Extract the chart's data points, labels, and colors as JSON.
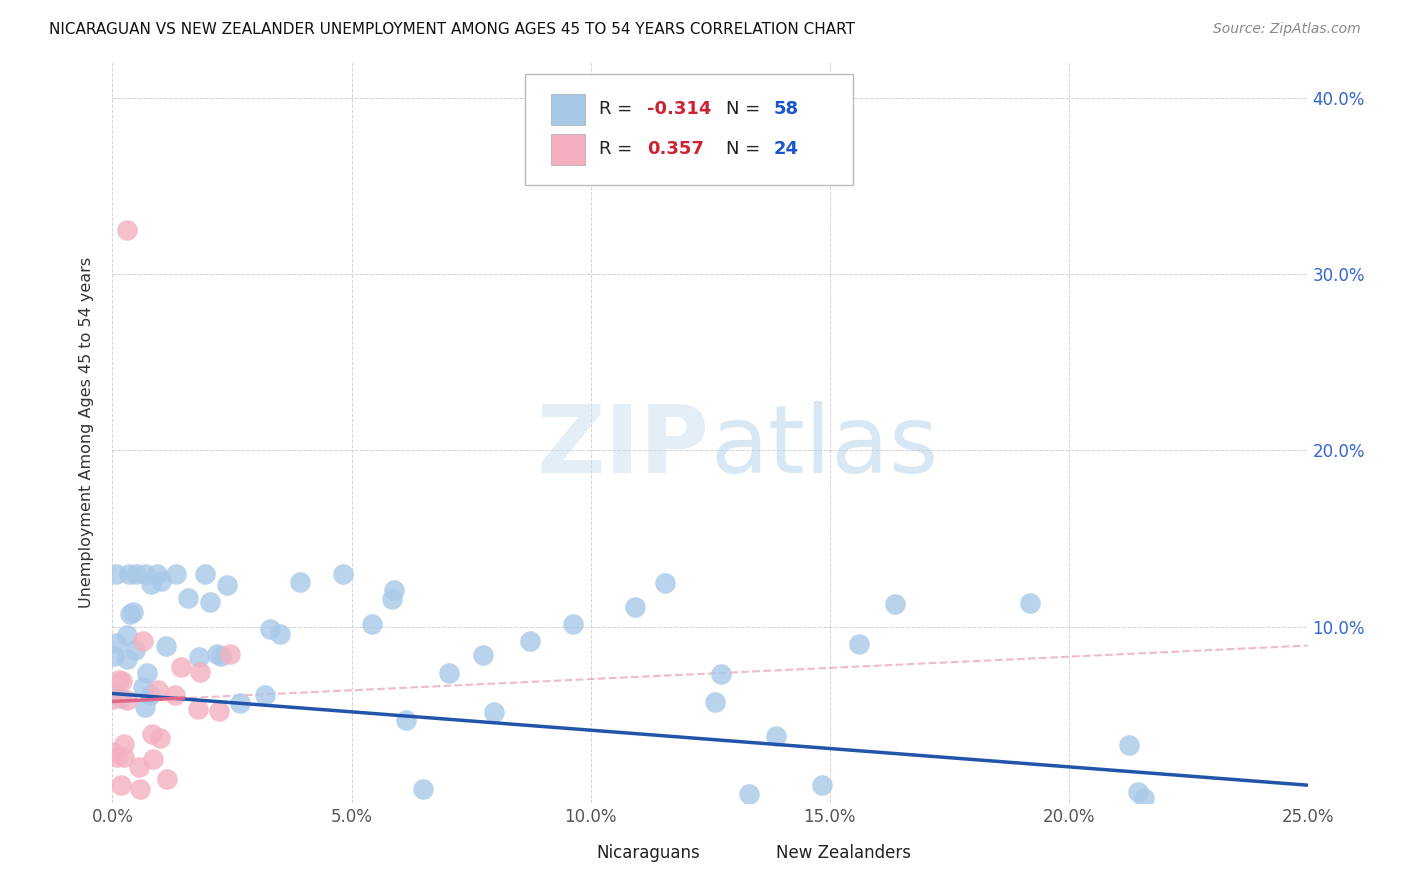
{
  "title": "NICARAGUAN VS NEW ZEALANDER UNEMPLOYMENT AMONG AGES 45 TO 54 YEARS CORRELATION CHART",
  "source": "Source: ZipAtlas.com",
  "ylabel": "Unemployment Among Ages 45 to 54 years",
  "xlim": [
    0.0,
    0.25
  ],
  "ylim": [
    0.0,
    0.42
  ],
  "xticks": [
    0.0,
    0.05,
    0.1,
    0.15,
    0.2,
    0.25
  ],
  "yticks": [
    0.0,
    0.1,
    0.2,
    0.3,
    0.4
  ],
  "xtick_labels": [
    "0.0%",
    "5.0%",
    "10.0%",
    "15.0%",
    "20.0%",
    "25.0%"
  ],
  "ytick_labels": [
    "",
    "10.0%",
    "20.0%",
    "30.0%",
    "40.0%"
  ],
  "r_nicaraguan": -0.314,
  "n_nicaraguan": 58,
  "r_nz": 0.357,
  "n_nz": 24,
  "blue_color": "#a8c8e8",
  "pink_color": "#f4b0c0",
  "trend_blue": "#2255aa",
  "trend_pink": "#dd6688",
  "watermark_zip": "ZIP",
  "watermark_atlas": "atlas",
  "legend_r_color": "#2255cc",
  "legend_n_color": "#2255cc"
}
